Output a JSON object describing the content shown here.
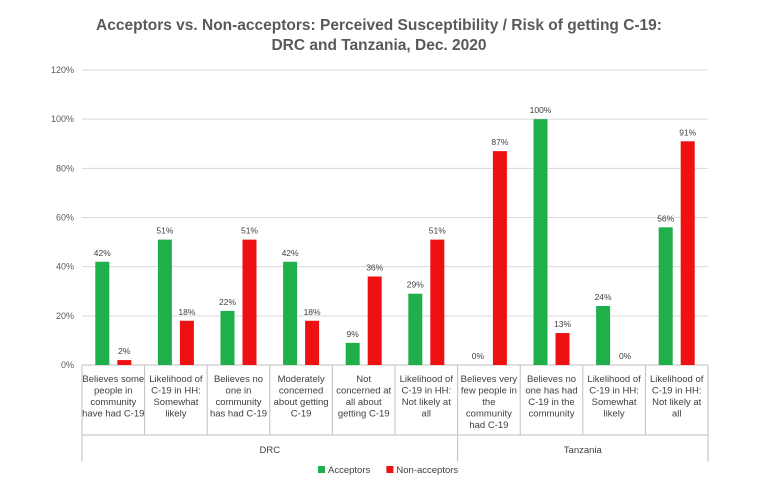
{
  "chart_data": {
    "type": "bar",
    "title": [
      "Acceptors vs. Non-acceptors:  Perceived Susceptibility / Risk of getting C-19:",
      "DRC and Tanzania, Dec. 2020"
    ],
    "ylim": [
      0,
      120
    ],
    "yticks": [
      "0%",
      "20%",
      "40%",
      "60%",
      "80%",
      "100%",
      "120%"
    ],
    "grid": true,
    "legend_position": "bottom",
    "groups": [
      {
        "name": "DRC",
        "count": 6
      },
      {
        "name": "Tanzania",
        "count": 4
      }
    ],
    "categories": [
      [
        "Believes some",
        "people in",
        "community",
        "have had C-19"
      ],
      [
        "Likelihood of",
        "C-19 in HH:",
        "Somewhat",
        "likely"
      ],
      [
        "Believes no",
        "one in",
        "community",
        "has had C-19"
      ],
      [
        "Moderately",
        "concerned",
        "about getting",
        "C-19"
      ],
      [
        "Not",
        "concerned at",
        "all about",
        "getting C-19"
      ],
      [
        "Likelihood of",
        "C-19 in HH:",
        "Not likely at",
        "all"
      ],
      [
        "Believes very",
        "few people in",
        "the",
        "community",
        "had C-19"
      ],
      [
        "Believes no",
        "one has had",
        "C-19 in the",
        "community"
      ],
      [
        "Likelihood of",
        "C-19 in HH:",
        "Somewhat",
        "likely"
      ],
      [
        "Likelihood of",
        "C-19 in HH:",
        "Not likely at",
        "all"
      ]
    ],
    "series": [
      {
        "name": "Acceptors",
        "color": "#1fb04b",
        "values": [
          42,
          51,
          22,
          42,
          9,
          29,
          0,
          100,
          24,
          56
        ],
        "labels": [
          "42%",
          "51%",
          "22%",
          "42%",
          "9%",
          "29%",
          "0%",
          "100%",
          "24%",
          "56%"
        ]
      },
      {
        "name": "Non-acceptors",
        "color": "#ee1111",
        "values": [
          2,
          18,
          51,
          18,
          36,
          51,
          87,
          13,
          0,
          91
        ],
        "labels": [
          "2%",
          "18%",
          "51%",
          "18%",
          "36%",
          "51%",
          "87%",
          "13%",
          "0%",
          "91%"
        ]
      }
    ]
  }
}
